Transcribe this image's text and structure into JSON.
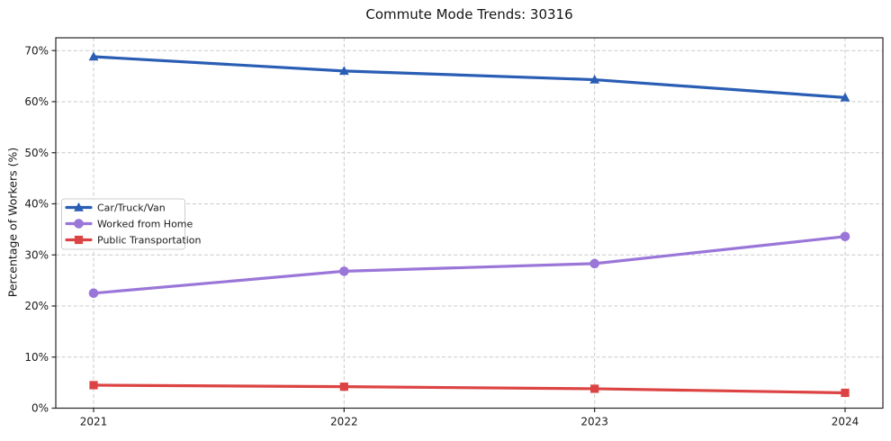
{
  "chart_data": {
    "type": "line",
    "title": "Commute Mode Trends: 30316",
    "xlabel": "",
    "ylabel": "Percentage of Workers (%)",
    "x": [
      "2021",
      "2022",
      "2023",
      "2024"
    ],
    "y_ticks": [
      0,
      10,
      20,
      30,
      40,
      50,
      60,
      70
    ],
    "y_tick_labels": [
      "0%",
      "10%",
      "20%",
      "30%",
      "40%",
      "50%",
      "60%",
      "70%"
    ],
    "ylim": [
      0,
      72.5
    ],
    "grid": true,
    "grid_style": "dashed",
    "legend_position": "center-left",
    "series": [
      {
        "name": "Car/Truck/Van",
        "color": "#2a5db4",
        "marker": "triangle",
        "values": [
          68.8,
          66.0,
          64.3,
          60.8
        ]
      },
      {
        "name": "Worked from Home",
        "color": "#9a76d8",
        "marker": "circle",
        "values": [
          22.5,
          26.8,
          28.3,
          33.6
        ]
      },
      {
        "name": "Public Transportation",
        "color": "#dc4443",
        "marker": "square",
        "values": [
          4.5,
          4.2,
          3.8,
          3.0
        ]
      }
    ],
    "colors": {
      "grid": "#c9c9c9",
      "spine": "#262626",
      "background": "#ffffff",
      "legend_border": "#cccccc"
    }
  }
}
